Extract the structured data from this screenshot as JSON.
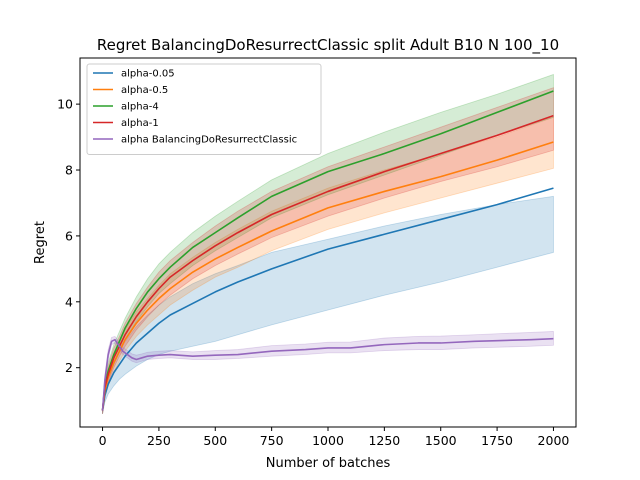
{
  "chart_data": {
    "type": "line",
    "title": "Regret BalancingDoResurrectClassic split Adult B10 N 100_10",
    "xlabel": "Number of batches",
    "ylabel": "Regret",
    "xlim": [
      -100,
      2100
    ],
    "ylim": [
      0.2,
      11.4
    ],
    "x_ticks": [
      0,
      250,
      500,
      750,
      1000,
      1250,
      1500,
      1750,
      2000
    ],
    "y_ticks": [
      2,
      4,
      6,
      8,
      10
    ],
    "grid": false,
    "legend_position": "top-left",
    "series": [
      {
        "name": "alpha-0.05",
        "color": "#1f77b4",
        "x": [
          0,
          10,
          25,
          50,
          75,
          100,
          150,
          200,
          250,
          300,
          400,
          500,
          600,
          750,
          1000,
          1250,
          1500,
          1750,
          2000
        ],
        "y": [
          0.7,
          1.15,
          1.5,
          1.85,
          2.1,
          2.35,
          2.75,
          3.05,
          3.35,
          3.6,
          3.95,
          4.3,
          4.6,
          5.0,
          5.6,
          6.05,
          6.5,
          6.95,
          7.45
        ],
        "lower": [
          0.6,
          0.95,
          1.2,
          1.45,
          1.65,
          1.8,
          2.05,
          2.25,
          2.4,
          2.5,
          2.65,
          2.8,
          3.0,
          3.3,
          3.75,
          4.2,
          4.6,
          5.05,
          5.5
        ],
        "upper": [
          0.8,
          1.3,
          1.7,
          2.15,
          2.5,
          2.8,
          3.25,
          3.6,
          3.9,
          4.15,
          4.55,
          4.85,
          5.1,
          5.5,
          5.9,
          6.3,
          6.65,
          6.95,
          7.2
        ]
      },
      {
        "name": "alpha-0.5",
        "color": "#ff7f0e",
        "x": [
          0,
          10,
          25,
          50,
          75,
          100,
          150,
          200,
          250,
          300,
          400,
          500,
          600,
          750,
          1000,
          1250,
          1500,
          1750,
          2000
        ],
        "y": [
          0.7,
          1.3,
          1.7,
          2.15,
          2.5,
          2.85,
          3.35,
          3.75,
          4.1,
          4.4,
          4.9,
          5.3,
          5.65,
          6.15,
          6.85,
          7.35,
          7.8,
          8.3,
          8.85
        ],
        "lower": [
          0.6,
          1.1,
          1.45,
          1.85,
          2.2,
          2.5,
          2.95,
          3.3,
          3.6,
          3.9,
          4.35,
          4.75,
          5.05,
          5.55,
          6.2,
          6.7,
          7.15,
          7.6,
          8.05
        ],
        "upper": [
          0.8,
          1.5,
          1.95,
          2.45,
          2.8,
          3.15,
          3.7,
          4.1,
          4.5,
          4.85,
          5.35,
          5.8,
          6.2,
          6.75,
          7.45,
          8.0,
          8.5,
          9.0,
          9.6
        ]
      },
      {
        "name": "alpha-4",
        "color": "#2ca02c",
        "x": [
          0,
          10,
          25,
          50,
          75,
          100,
          150,
          200,
          250,
          300,
          400,
          500,
          600,
          750,
          1000,
          1250,
          1500,
          1750,
          2000
        ],
        "y": [
          0.7,
          1.45,
          1.9,
          2.4,
          2.8,
          3.2,
          3.8,
          4.3,
          4.7,
          5.05,
          5.65,
          6.1,
          6.55,
          7.2,
          7.95,
          8.5,
          9.1,
          9.75,
          10.4
        ],
        "lower": [
          0.6,
          1.25,
          1.65,
          2.1,
          2.5,
          2.85,
          3.4,
          3.85,
          4.25,
          4.55,
          5.1,
          5.55,
          5.95,
          6.55,
          7.25,
          7.85,
          8.45,
          9.05,
          9.6
        ],
        "upper": [
          0.8,
          1.65,
          2.15,
          2.7,
          3.1,
          3.5,
          4.15,
          4.7,
          5.15,
          5.5,
          6.1,
          6.6,
          7.05,
          7.7,
          8.5,
          9.15,
          9.75,
          10.3,
          10.9
        ]
      },
      {
        "name": "alpha-1",
        "color": "#d62728",
        "x": [
          0,
          10,
          25,
          50,
          75,
          100,
          150,
          200,
          250,
          300,
          400,
          500,
          600,
          750,
          1000,
          1250,
          1500,
          1750,
          2000
        ],
        "y": [
          0.7,
          1.4,
          1.8,
          2.3,
          2.65,
          3.0,
          3.55,
          4.0,
          4.4,
          4.75,
          5.25,
          5.7,
          6.1,
          6.65,
          7.35,
          7.95,
          8.5,
          9.05,
          9.65
        ],
        "lower": [
          0.6,
          1.2,
          1.55,
          2.0,
          2.35,
          2.65,
          3.15,
          3.55,
          3.9,
          4.2,
          4.7,
          5.1,
          5.45,
          5.95,
          6.6,
          7.15,
          7.65,
          8.1,
          8.6
        ],
        "upper": [
          0.8,
          1.6,
          2.05,
          2.6,
          2.95,
          3.35,
          3.95,
          4.45,
          4.9,
          5.25,
          5.8,
          6.3,
          6.75,
          7.35,
          8.1,
          8.7,
          9.3,
          9.9,
          10.5
        ]
      },
      {
        "name": "alpha BalancingDoResurrectClassic",
        "color": "#9467bd",
        "x": [
          0,
          10,
          25,
          40,
          55,
          70,
          90,
          110,
          130,
          150,
          175,
          200,
          250,
          300,
          400,
          500,
          600,
          750,
          900,
          1000,
          1100,
          1250,
          1400,
          1500,
          1650,
          1750,
          1900,
          2000
        ],
        "y": [
          0.7,
          1.6,
          2.4,
          2.8,
          2.85,
          2.7,
          2.5,
          2.4,
          2.3,
          2.25,
          2.3,
          2.35,
          2.38,
          2.4,
          2.35,
          2.38,
          2.4,
          2.5,
          2.55,
          2.6,
          2.6,
          2.7,
          2.75,
          2.75,
          2.8,
          2.82,
          2.85,
          2.88
        ],
        "lower": [
          0.6,
          1.45,
          2.25,
          2.7,
          2.75,
          2.6,
          2.4,
          2.3,
          2.2,
          2.15,
          2.2,
          2.25,
          2.28,
          2.3,
          2.25,
          2.25,
          2.28,
          2.35,
          2.4,
          2.45,
          2.45,
          2.52,
          2.55,
          2.55,
          2.6,
          2.62,
          2.65,
          2.68
        ],
        "upper": [
          0.8,
          1.75,
          2.55,
          2.92,
          2.95,
          2.82,
          2.62,
          2.52,
          2.42,
          2.38,
          2.42,
          2.47,
          2.5,
          2.52,
          2.48,
          2.52,
          2.55,
          2.67,
          2.72,
          2.77,
          2.78,
          2.9,
          2.95,
          2.96,
          3.0,
          3.03,
          3.07,
          3.1
        ]
      }
    ]
  }
}
